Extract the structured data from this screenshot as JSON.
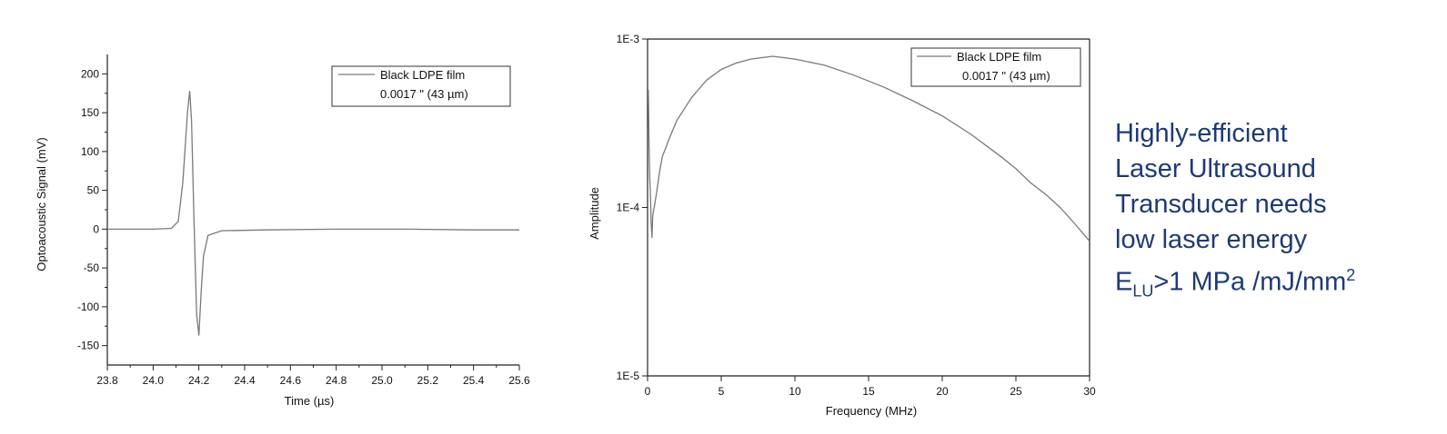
{
  "chart_data": [
    {
      "type": "line",
      "title": "",
      "xlabel": "Time (µs)",
      "ylabel": "Optoacoustic Signal (mV)",
      "xlim": [
        23.8,
        25.6
      ],
      "ylim": [
        -175,
        225
      ],
      "xticks": [
        23.8,
        24.0,
        24.2,
        24.4,
        24.6,
        24.8,
        25.0,
        25.2,
        25.4,
        25.6
      ],
      "xtick_labels": [
        "23.8",
        "24.0",
        "24.2",
        "24.4",
        "24.6",
        "24.8",
        "25.0",
        "25.2",
        "25.4",
        "25.6"
      ],
      "yticks": [
        -150,
        -100,
        -50,
        0,
        50,
        100,
        150,
        200
      ],
      "ytick_labels": [
        "-150",
        "-100",
        "-50",
        "0",
        "50",
        "100",
        "150",
        "200"
      ],
      "grid": false,
      "legend": {
        "placement": "top-right",
        "lines": [
          "Black LDPE film",
          "0.0017 \" (43 µm)"
        ]
      },
      "series": [
        {
          "name": "Black LDPE film",
          "color": "#7a7a7a",
          "x": [
            23.8,
            24.0,
            24.08,
            24.11,
            24.13,
            24.15,
            24.16,
            24.168,
            24.178,
            24.19,
            24.2,
            24.21,
            24.22,
            24.24,
            24.3,
            24.5,
            24.8,
            25.1,
            25.4,
            25.6
          ],
          "y": [
            0,
            0,
            1,
            10,
            60,
            150,
            178,
            140,
            20,
            -110,
            -137,
            -80,
            -35,
            -8,
            -2,
            -1,
            0,
            0,
            -1,
            -1
          ]
        }
      ]
    },
    {
      "type": "line",
      "title": "",
      "xlabel": "Frequency (MHz)",
      "ylabel": "Amplitude",
      "xscale": "linear",
      "yscale": "log",
      "xlim": [
        0,
        30
      ],
      "ylim": [
        1e-05,
        0.001
      ],
      "xticks": [
        0,
        5,
        10,
        15,
        20,
        25,
        30
      ],
      "xtick_labels": [
        "0",
        "5",
        "10",
        "15",
        "20",
        "25",
        "30"
      ],
      "yticks": [
        1e-05,
        0.0001,
        0.001
      ],
      "ytick_labels": [
        "1E-5",
        "1E-4",
        "1E-3"
      ],
      "grid": false,
      "legend": {
        "placement": "top-right",
        "lines": [
          "Black LDPE film",
          "0.0017 \" (43 µm)"
        ]
      },
      "series": [
        {
          "name": "Black LDPE film",
          "color": "#7a7a7a",
          "x": [
            0.05,
            0.1,
            0.15,
            0.2,
            0.25,
            0.3,
            0.35,
            0.45,
            0.6,
            0.8,
            1,
            1.5,
            2,
            3,
            4,
            5,
            6,
            7,
            8,
            8.5,
            9,
            10,
            12,
            14,
            16,
            18,
            20,
            22,
            24,
            25,
            26,
            27,
            28,
            29,
            30
          ],
          "y": [
            0.0005,
            0.00025,
            0.00015,
            0.00012,
            8e-05,
            6.6e-05,
            9e-05,
            0.0001,
            0.00012,
            0.00016,
            0.0002,
            0.00026,
            0.00033,
            0.00045,
            0.00057,
            0.00066,
            0.00072,
            0.00076,
            0.00078,
            0.00079,
            0.00078,
            0.00076,
            0.0007,
            0.00061,
            0.00052,
            0.00043,
            0.00035,
            0.00027,
            0.0002,
            0.00017,
            0.00014,
            0.00012,
            0.0001,
            8e-05,
            6.3e-05
          ]
        }
      ]
    }
  ],
  "annotation": {
    "lines": [
      "Highly-efficient",
      "Laser Ultrasound",
      "Transducer needs",
      "low laser energy"
    ],
    "formula": {
      "base": "E",
      "sub": "LU",
      "middle": ">1 MPa /mJ/mm",
      "sup": "2"
    }
  }
}
